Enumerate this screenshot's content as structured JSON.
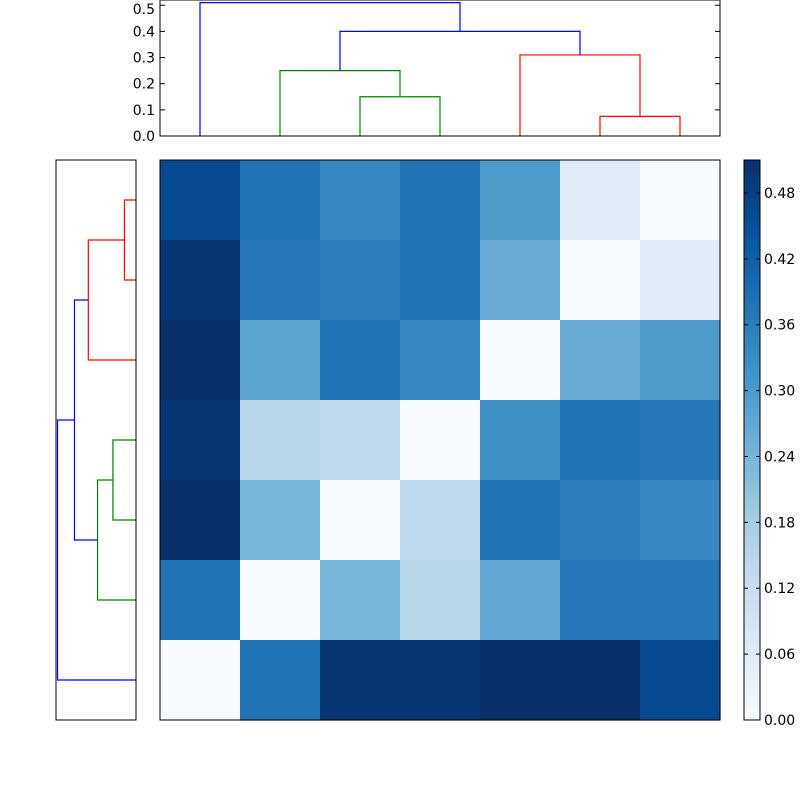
{
  "chart_data": [
    {
      "type": "dendrogram",
      "name": "top-dendrogram",
      "orientation": "top",
      "ylim": [
        0,
        0.52
      ],
      "yticks": [
        0.0,
        0.1,
        0.2,
        0.3,
        0.4,
        0.5
      ],
      "ytick_labels": [
        "0.0",
        "0.1",
        "0.2",
        "0.3",
        "0.4",
        "0.5"
      ],
      "leaf_count": 7,
      "links": [
        {
          "left": 3,
          "right": 4,
          "left_h": 0.0,
          "right_h": 0.0,
          "height": 0.15,
          "color": "#008000"
        },
        {
          "left": 2,
          "right": 3.5,
          "left_h": 0.0,
          "right_h": 0.15,
          "height": 0.25,
          "color": "#008000"
        },
        {
          "left": 6,
          "right": 7,
          "left_h": 0.0,
          "right_h": 0.0,
          "height": 0.075,
          "color": "#ff0000"
        },
        {
          "left": 5,
          "right": 6.5,
          "left_h": 0.0,
          "right_h": 0.075,
          "height": 0.31,
          "color": "#ff0000"
        },
        {
          "left": 2.75,
          "right": 5.75,
          "left_h": 0.25,
          "right_h": 0.31,
          "height": 0.4,
          "color": "#0000ff"
        },
        {
          "left": 1,
          "right": 4.25,
          "left_h": 0.0,
          "right_h": 0.4,
          "height": 0.51,
          "color": "#0000ff"
        }
      ]
    },
    {
      "type": "dendrogram",
      "name": "left-dendrogram",
      "orientation": "left",
      "xlim": [
        0.52,
        0
      ],
      "leaf_count": 7,
      "links": [
        {
          "left": 1,
          "right": 2,
          "left_h": 0.0,
          "right_h": 0.0,
          "height": 0.075,
          "color": "#ff0000"
        },
        {
          "left": 1.5,
          "right": 3,
          "left_h": 0.075,
          "right_h": 0.0,
          "height": 0.31,
          "color": "#ff0000"
        },
        {
          "left": 4,
          "right": 5,
          "left_h": 0.0,
          "right_h": 0.0,
          "height": 0.15,
          "color": "#008000"
        },
        {
          "left": 4.5,
          "right": 6,
          "left_h": 0.15,
          "right_h": 0.0,
          "height": 0.25,
          "color": "#008000"
        },
        {
          "left": 2.25,
          "right": 5.25,
          "left_h": 0.31,
          "right_h": 0.25,
          "height": 0.4,
          "color": "#0000ff"
        },
        {
          "left": 3.75,
          "right": 7,
          "left_h": 0.4,
          "right_h": 0.0,
          "height": 0.51,
          "color": "#0000ff"
        }
      ]
    },
    {
      "type": "heatmap",
      "name": "distance-heatmap",
      "colormap": "Blues",
      "vmin": 0.0,
      "vmax": 0.51,
      "matrix": [
        [
          0.46,
          0.38,
          0.34,
          0.38,
          0.3,
          0.06,
          0.0
        ],
        [
          0.5,
          0.37,
          0.36,
          0.38,
          0.26,
          0.0,
          0.06
        ],
        [
          0.51,
          0.28,
          0.38,
          0.34,
          0.0,
          0.26,
          0.3
        ],
        [
          0.5,
          0.15,
          0.14,
          0.0,
          0.32,
          0.38,
          0.37
        ],
        [
          0.51,
          0.24,
          0.0,
          0.14,
          0.38,
          0.36,
          0.34
        ],
        [
          0.38,
          0.0,
          0.24,
          0.15,
          0.27,
          0.37,
          0.37
        ],
        [
          0.0,
          0.38,
          0.5,
          0.5,
          0.51,
          0.51,
          0.46
        ]
      ]
    },
    {
      "type": "colorbar",
      "name": "colorbar",
      "range": [
        0.0,
        0.51
      ],
      "ticks": [
        0.0,
        0.06,
        0.12,
        0.18,
        0.24,
        0.3,
        0.36,
        0.42,
        0.48
      ],
      "tick_labels": [
        "0.00",
        "0.06",
        "0.12",
        "0.18",
        "0.24",
        "0.30",
        "0.36",
        "0.42",
        "0.48"
      ]
    }
  ]
}
